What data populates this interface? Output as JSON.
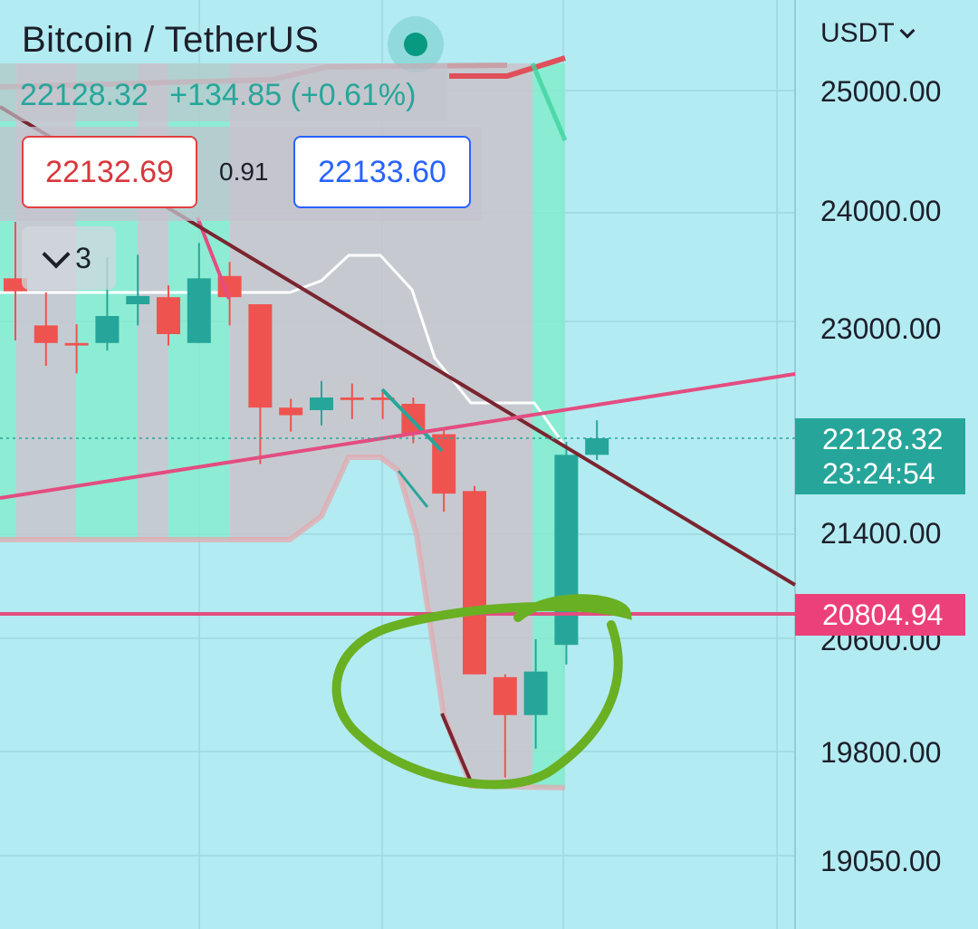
{
  "header": {
    "title": "Bitcoin / TetherUS",
    "price": "22128.32",
    "change": "+134.85 (+0.61%)",
    "sell_price": "22132.69",
    "spread": "0.91",
    "buy_price": "22133.60",
    "collapse_count": "3",
    "collapse_icon": "chevron-down-icon",
    "status_icon": "live-status-icon"
  },
  "axis": {
    "currency": "USDT",
    "currency_icon": "chevron-down-icon"
  },
  "price_tags": {
    "current_price": "22128.32",
    "countdown": "23:24:54",
    "line_price": "20804.94"
  },
  "colors": {
    "background": "#b3ebf2",
    "up": "#26a69a",
    "down": "#ef5350",
    "bands_gray": "#c8c6cc",
    "bands_green": "#80ecc9",
    "pink_line": "#e34d80",
    "trend_line": "#7a2530",
    "ichimoku_line": "#ffffff",
    "annotation": "#6ab023"
  },
  "chart_data": {
    "type": "candlestick",
    "title": "Bitcoin / TetherUS",
    "ylabel": "",
    "y_ticks": [
      25000.0,
      24000.0,
      23000.0,
      21400.0,
      20600.0,
      19800.0,
      19050.0
    ],
    "y_tick_labels": [
      "25000.00",
      "24000.00",
      "23000.00",
      "21400.00",
      "20600.00",
      "19800.00",
      "19050.00"
    ],
    "candles": [
      {
        "o": 23420,
        "h": 23900,
        "l": 22900,
        "c": 23310
      },
      {
        "o": 23020,
        "h": 23300,
        "l": 22700,
        "c": 22880
      },
      {
        "o": 22880,
        "h": 23030,
        "l": 22640,
        "c": 22860
      },
      {
        "o": 22880,
        "h": 23600,
        "l": 22820,
        "c": 23100
      },
      {
        "o": 23200,
        "h": 23620,
        "l": 23020,
        "c": 23270
      },
      {
        "o": 23260,
        "h": 23360,
        "l": 22860,
        "c": 22950
      },
      {
        "o": 22880,
        "h": 23720,
        "l": 22880,
        "c": 23420
      },
      {
        "o": 23440,
        "h": 23560,
        "l": 23020,
        "c": 23260
      },
      {
        "o": 23200,
        "h": 23200,
        "l": 21930,
        "c": 22370
      },
      {
        "o": 22370,
        "h": 22440,
        "l": 22180,
        "c": 22310
      },
      {
        "o": 22350,
        "h": 22580,
        "l": 22230,
        "c": 22450
      },
      {
        "o": 22450,
        "h": 22560,
        "l": 22280,
        "c": 22430
      },
      {
        "o": 22450,
        "h": 22500,
        "l": 22280,
        "c": 22430
      },
      {
        "o": 22400,
        "h": 22450,
        "l": 22090,
        "c": 22160
      },
      {
        "o": 22160,
        "h": 22200,
        "l": 21560,
        "c": 21700
      },
      {
        "o": 21720,
        "h": 21760,
        "l": 20350,
        "c": 20350
      },
      {
        "o": 20330,
        "h": 20350,
        "l": 19620,
        "c": 20060
      },
      {
        "o": 20060,
        "h": 20600,
        "l": 19820,
        "c": 20370
      },
      {
        "o": 20560,
        "h": 22100,
        "l": 20420,
        "c": 22000
      },
      {
        "o": 22000,
        "h": 22270,
        "l": 21960,
        "c": 22128.32
      }
    ],
    "horizontal_line": 20804.94,
    "current_price": 22128.32,
    "axis_range": [
      18800,
      25400
    ]
  }
}
